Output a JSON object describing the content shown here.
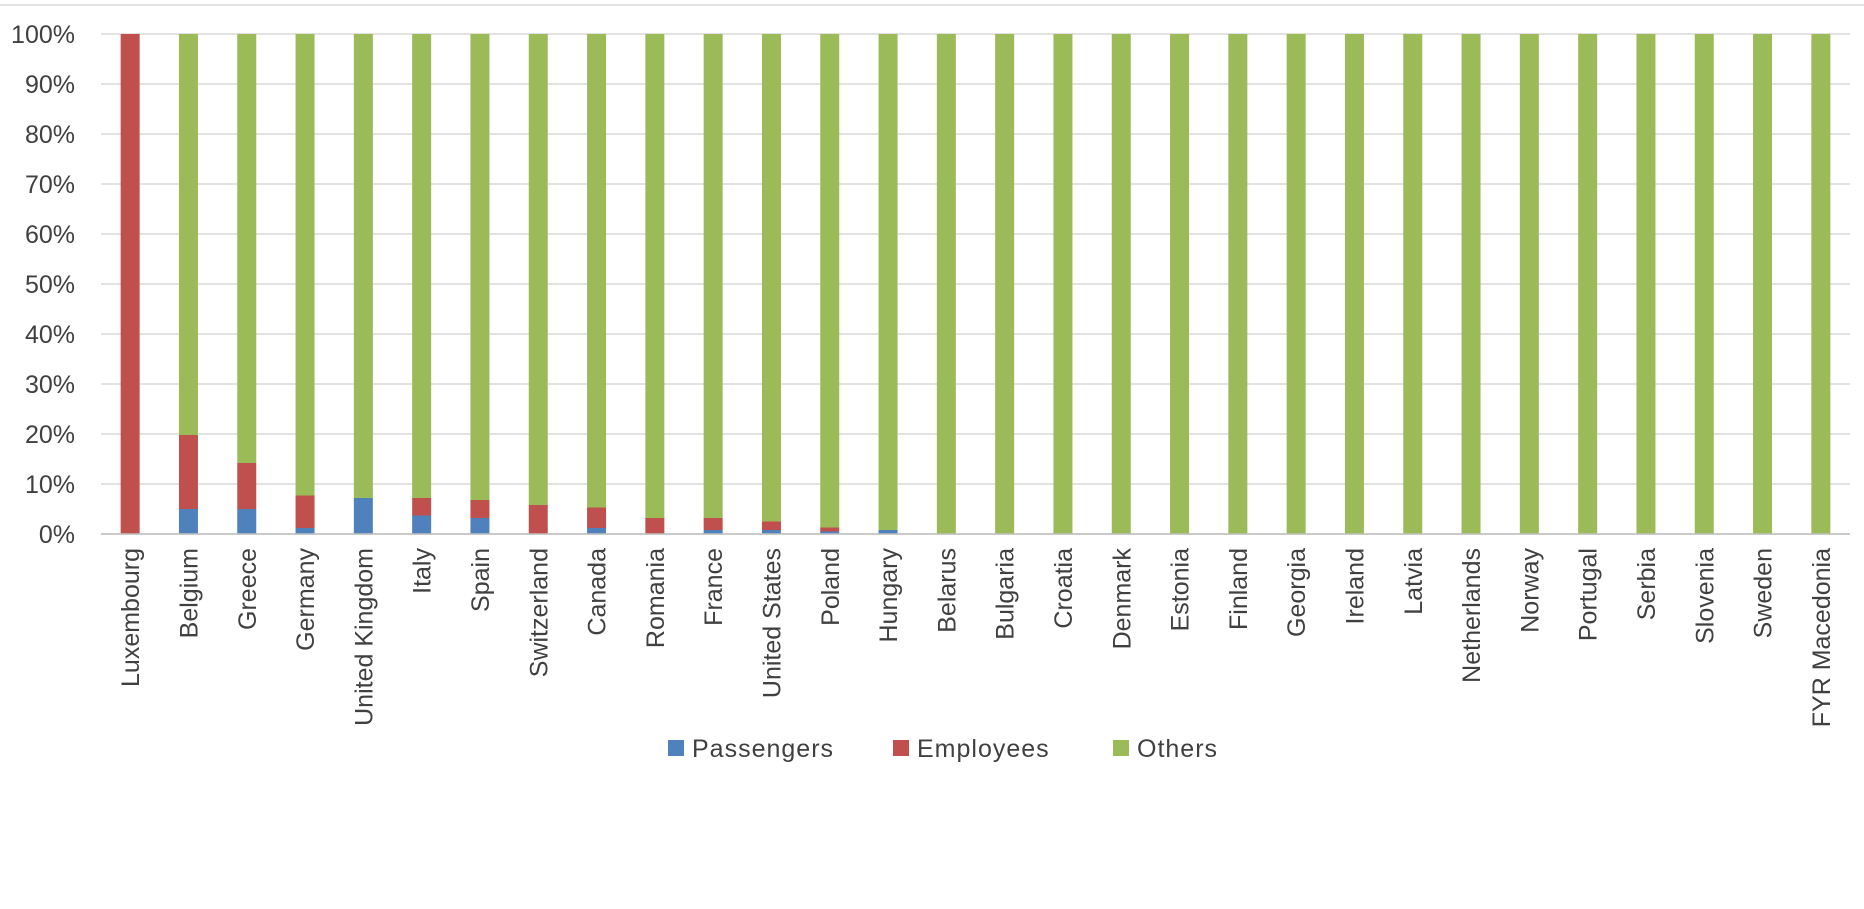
{
  "chart_data": {
    "type": "bar",
    "stacked": "percent",
    "categories": [
      "Luxembourg",
      "Belgium",
      "Greece",
      "Germany",
      "United Kingdom",
      "Italy",
      "Spain",
      "Switzerland",
      "Canada",
      "Romania",
      "France",
      "United States",
      "Poland",
      "Hungary",
      "Belarus",
      "Bulgaria",
      "Croatia",
      "Denmark",
      "Estonia",
      "Finland",
      "Georgia",
      "Ireland",
      "Latvia",
      "Netherlands",
      "Norway",
      "Portugal",
      "Serbia",
      "Slovenia",
      "Sweden",
      "FYR Macedonia"
    ],
    "series": [
      {
        "name": "Passengers",
        "color": "#4f81bd",
        "values": [
          0,
          5,
          5,
          1.2,
          7.2,
          3.7,
          3.2,
          0,
          1.2,
          0,
          0.8,
          0.8,
          0.5,
          0.8,
          0,
          0,
          0,
          0,
          0,
          0,
          0,
          0,
          0,
          0,
          0,
          0,
          0,
          0,
          0,
          0
        ]
      },
      {
        "name": "Employees",
        "color": "#c0504d",
        "values": [
          100,
          14.8,
          9.2,
          6.5,
          0,
          3.5,
          3.6,
          5.8,
          4.1,
          3.2,
          2.4,
          1.7,
          0.8,
          0,
          0,
          0,
          0,
          0,
          0,
          0,
          0,
          0,
          0,
          0,
          0,
          0,
          0,
          0,
          0,
          0
        ]
      },
      {
        "name": "Others",
        "color": "#9bbb59",
        "values": [
          0,
          80.2,
          85.8,
          92.3,
          92.8,
          92.8,
          93.2,
          94.2,
          94.7,
          96.8,
          96.8,
          97.5,
          98.7,
          99.2,
          100,
          100,
          100,
          100,
          100,
          100,
          100,
          100,
          100,
          100,
          100,
          100,
          100,
          100,
          100,
          100
        ]
      }
    ],
    "y_ticks": [
      "0%",
      "10%",
      "20%",
      "30%",
      "40%",
      "50%",
      "60%",
      "70%",
      "80%",
      "90%",
      "100%"
    ],
    "ylim": [
      0,
      100
    ],
    "grid": true,
    "legend": "bottom-center",
    "title": "",
    "xlabel": "",
    "ylabel": ""
  }
}
